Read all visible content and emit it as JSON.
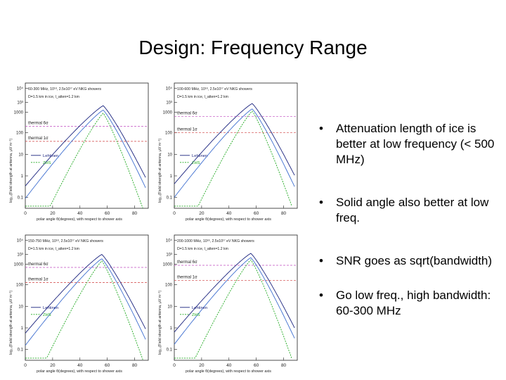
{
  "slide": {
    "title": "Design: Frequency Range"
  },
  "plots": [
    {
      "header1": "60-300 MHz, 10¹⁸, 2.5x10¹⁷ eV NKG showers",
      "header2": "D=1.5 km in ice, l_atten=1.2 km",
      "ylabel": "log₁₀(Field strength at antenna, μV m⁻¹)",
      "xlabel": "polar angle θ(degrees), with respect to shower axis",
      "yticks": [
        "10⁴",
        "10³",
        "1000",
        "100",
        "10",
        "1",
        "0.1"
      ],
      "xticks": [
        "0",
        "20",
        "40",
        "60",
        "80"
      ],
      "thermal6": "thermal 6σ",
      "thermal1": "thermal 1σ",
      "legend1": "Lehtinen",
      "legend2": "ZHS",
      "peak_deg": 57,
      "peak_log": 3.25,
      "peak2_log": 3.05,
      "green_peak_log": 2.9,
      "thermal6_log": 2.3,
      "thermal1_log": 1.6
    },
    {
      "header1": "100-600 MHz, 10¹⁸, 2.5x10¹⁷ eV NKG showers",
      "header2": "D=1.5 km in ice, l_atten=1.2 km",
      "ylabel": "log₁₀(Field strength at antenna, μV m⁻¹)",
      "xlabel": "polar angle θ(degrees), with respect to shower axis",
      "yticks": [
        "10⁴",
        "10³",
        "1000",
        "100",
        "10",
        "1",
        "0.1"
      ],
      "xticks": [
        "0",
        "20",
        "40",
        "60",
        "80"
      ],
      "thermal6": "thermal 6σ",
      "thermal1": "thermal 1σ",
      "legend1": "Lehtinen",
      "legend2": "ZHS",
      "peak_deg": 57,
      "peak_log": 3.35,
      "peak2_log": 3.1,
      "green_peak_log": 3.0,
      "thermal6_log": 2.75,
      "thermal1_log": 2.0
    },
    {
      "header1": "150-750 MHz, 10¹⁸, 2.5x10¹⁷ eV NKG showers",
      "header2": "D=1.5 km in ice, l_atten=1.2 km",
      "ylabel": "log₁₀(Field strength at antenna, μV m⁻¹)",
      "xlabel": "polar angle θ(degrees), with respect to shower axis",
      "yticks": [
        "10⁴",
        "10³",
        "1000",
        "100",
        "10",
        "1",
        "0.1"
      ],
      "xticks": [
        "0",
        "20",
        "40",
        "60",
        "80"
      ],
      "thermal6": "thermal 6σ",
      "thermal1": "thermal 1σ",
      "legend1": "Lehtinen",
      "legend2": "ZHS",
      "peak_deg": 56,
      "peak_log": 3.4,
      "peak2_log": 3.2,
      "green_peak_log": 3.1,
      "thermal6_log": 2.8,
      "thermal1_log": 2.1
    },
    {
      "header1": "200-1000 MHz, 10¹⁸, 2.5x10¹⁷ eV NKG showers",
      "header2": "D=1.5 km in ice, l_atten=1.2 km",
      "ylabel": "log₁₀(Field strength at antenna, μV m⁻¹)",
      "xlabel": "polar angle θ(degrees), with respect to shower axis",
      "yticks": [
        "10⁴",
        "10³",
        "1000",
        "100",
        "10",
        "1",
        "0.1"
      ],
      "xticks": [
        "0",
        "20",
        "40",
        "60",
        "80"
      ],
      "thermal6": "thermal 6σ",
      "thermal1": "thermal 1σ",
      "legend1": "Lehtinen",
      "legend2": "ZHS",
      "peak_deg": 56,
      "peak_log": 3.45,
      "peak2_log": 3.25,
      "green_peak_log": 3.15,
      "thermal6_log": 2.9,
      "thermal1_log": 2.2
    }
  ],
  "bullets": [
    "Attenuation length of ice is better at low frequency (< 500 MHz)",
    "Solid angle also better at low freq.",
    "SNR goes as sqrt(bandwidth)",
    "Go low freq., high bandwidth: 60-300 MHz"
  ],
  "bullet_symbol": "•",
  "colors": {
    "series_dark_blue": "#1a237e",
    "series_light_blue": "#3f6fd0",
    "series_green": "#22aa22",
    "thermal_6sigma": "#c04cc0",
    "thermal_1sigma": "#d04040"
  }
}
